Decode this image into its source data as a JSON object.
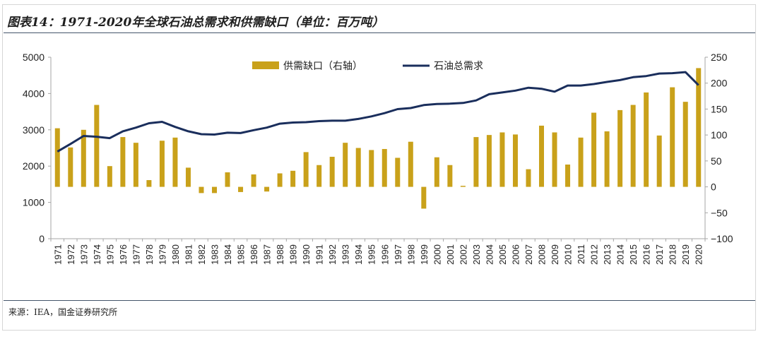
{
  "title": "图表14：1971-2020年全球石油总需求和供需缺口（单位：百万吨）",
  "source": "来源：IEA，国金证券研究所",
  "colors": {
    "bar": "#c9a11a",
    "line": "#1a2e5c",
    "axis": "#a6a6a6",
    "rule": "#44546a"
  },
  "chart_data": {
    "type": "bar+line",
    "categories": [
      "1971",
      "1972",
      "1973",
      "1974",
      "1975",
      "1976",
      "1977",
      "1978",
      "1979",
      "1980",
      "1981",
      "1982",
      "1983",
      "1984",
      "1985",
      "1986",
      "1987",
      "1988",
      "1989",
      "1990",
      "1991",
      "1992",
      "1993",
      "1994",
      "1995",
      "1996",
      "1997",
      "1998",
      "1999",
      "2000",
      "2001",
      "2002",
      "2003",
      "2004",
      "2005",
      "2006",
      "2007",
      "2008",
      "2009",
      "2010",
      "2011",
      "2012",
      "2013",
      "2014",
      "2015",
      "2016",
      "2017",
      "2018",
      "2019",
      "2020"
    ],
    "series": [
      {
        "name": "供需缺口（右轴）",
        "type": "bar",
        "axis": "right",
        "values": [
          113,
          76,
          110,
          158,
          40,
          96,
          85,
          13,
          89,
          95,
          37,
          -12,
          -12,
          28,
          -10,
          24,
          -9,
          26,
          31,
          67,
          42,
          58,
          85,
          75,
          71,
          73,
          56,
          87,
          -42,
          57,
          42,
          2,
          96,
          100,
          105,
          101,
          34,
          118,
          105,
          43,
          95,
          143,
          107,
          148,
          158,
          182,
          99,
          192,
          164,
          229
        ]
      },
      {
        "name": "石油总需求",
        "type": "line",
        "axis": "left",
        "values": [
          2400,
          2610,
          2830,
          2810,
          2770,
          2960,
          3060,
          3180,
          3220,
          3080,
          2960,
          2880,
          2870,
          2920,
          2910,
          2990,
          3060,
          3170,
          3200,
          3210,
          3240,
          3250,
          3250,
          3300,
          3370,
          3460,
          3570,
          3600,
          3680,
          3710,
          3720,
          3740,
          3810,
          3980,
          4030,
          4080,
          4160,
          4130,
          4050,
          4220,
          4220,
          4260,
          4320,
          4370,
          4450,
          4480,
          4550,
          4560,
          4590,
          4230
        ]
      }
    ],
    "yleft": {
      "min": 0,
      "max": 5000,
      "ticks": [
        0,
        1000,
        2000,
        3000,
        4000,
        5000
      ]
    },
    "yright": {
      "min": -100,
      "max": 250,
      "ticks": [
        -100,
        -50,
        0,
        50,
        100,
        150,
        200,
        250
      ]
    },
    "legend": {
      "position": "top-center"
    },
    "grid": false
  }
}
